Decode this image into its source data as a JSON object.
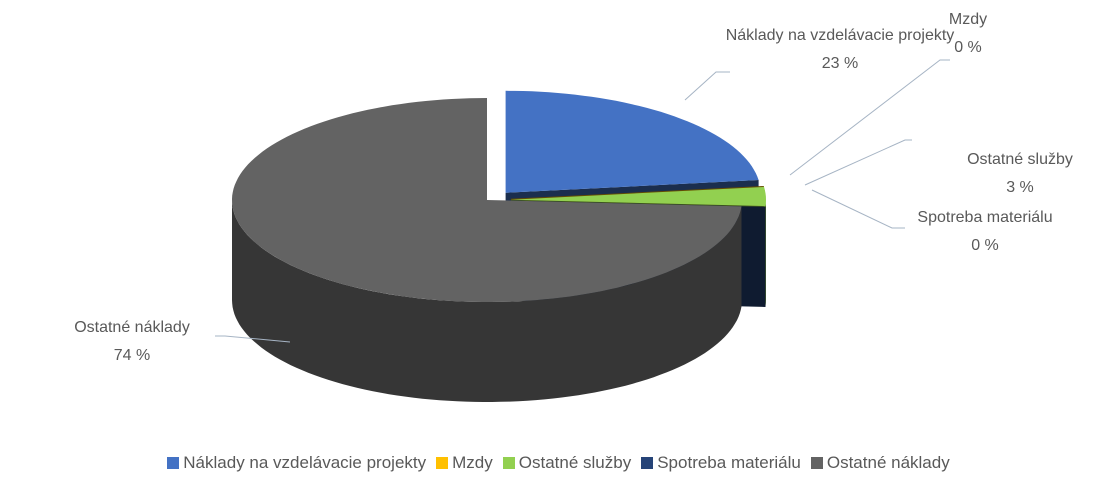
{
  "chart_data": {
    "type": "pie",
    "categories": [
      "Náklady na vzdelávacie projekty",
      "Mzdy",
      "Ostatné služby",
      "Spotreba materiálu",
      "Ostatné náklady"
    ],
    "values": [
      23,
      0,
      3,
      0,
      74
    ],
    "value_labels": [
      "23 %",
      "0 %",
      "3 %",
      "0 %",
      "74 %"
    ],
    "colors": [
      "#4472c4",
      "#ffc000",
      "#92d050",
      "#264478",
      "#636363"
    ],
    "legend": "bottom"
  }
}
